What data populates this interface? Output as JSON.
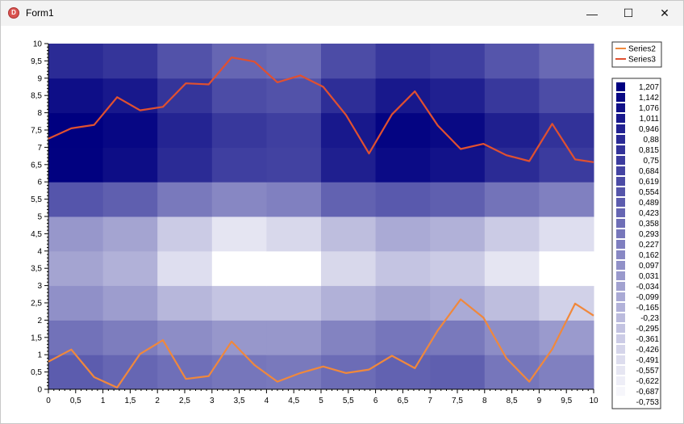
{
  "window": {
    "title": "Form1",
    "icon": "app-icon"
  },
  "titlebar_buttons": [
    {
      "name": "minimize-button",
      "glyph": "—"
    },
    {
      "name": "maximize-button",
      "glyph": "☐"
    },
    {
      "name": "close-button",
      "glyph": "✕"
    }
  ],
  "chart_data": {
    "type": "heatmap",
    "title": "",
    "xlabel": "",
    "ylabel": "",
    "xlim": [
      0,
      10
    ],
    "ylim": [
      0,
      10
    ],
    "x_ticks": [
      "0",
      "0,5",
      "1",
      "1,5",
      "2",
      "2,5",
      "3",
      "3,5",
      "4",
      "4,5",
      "5",
      "5,5",
      "6",
      "6,5",
      "7",
      "7,5",
      "8",
      "8,5",
      "9",
      "9,5",
      "10"
    ],
    "y_ticks": [
      "0",
      "0,5",
      "1",
      "1,5",
      "2",
      "2,5",
      "3",
      "3,5",
      "4",
      "4,5",
      "5",
      "5,5",
      "6",
      "6,5",
      "7",
      "7,5",
      "8",
      "8,5",
      "9",
      "9,5",
      "10"
    ],
    "heatmap_rows": [
      [
        0.5,
        0.42,
        0.35,
        0.3,
        0.28,
        0.38,
        0.45,
        0.48,
        0.3,
        0.22
      ],
      [
        0.33,
        0.25,
        0.12,
        0.05,
        0.05,
        0.2,
        0.3,
        0.28,
        0.12,
        0.02
      ],
      [
        0.1,
        0.0,
        -0.2,
        -0.3,
        -0.3,
        -0.15,
        -0.05,
        -0.1,
        -0.25,
        -0.4
      ],
      [
        -0.05,
        -0.15,
        -0.5,
        -0.75,
        -0.75,
        -0.45,
        -0.3,
        -0.35,
        -0.55,
        -0.75
      ],
      [
        0.05,
        -0.05,
        -0.35,
        -0.55,
        -0.45,
        -0.25,
        -0.1,
        -0.15,
        -0.35,
        -0.5
      ],
      [
        0.55,
        0.48,
        0.28,
        0.17,
        0.22,
        0.45,
        0.52,
        0.48,
        0.32,
        0.22
      ],
      [
        1.2,
        1.11,
        0.88,
        0.72,
        0.7,
        0.97,
        1.12,
        1.07,
        0.88,
        0.75
      ],
      [
        1.207,
        1.15,
        0.93,
        0.78,
        0.72,
        1.02,
        1.18,
        1.14,
        0.97,
        0.82
      ],
      [
        1.1,
        1.02,
        0.8,
        0.62,
        0.58,
        0.85,
        1.02,
        0.96,
        0.78,
        0.62
      ],
      [
        0.88,
        0.8,
        0.58,
        0.42,
        0.38,
        0.62,
        0.78,
        0.72,
        0.55,
        0.4
      ]
    ],
    "series": [
      {
        "name": "Series2",
        "color": "#f0883c",
        "x": [
          0,
          0.42,
          0.84,
          1.26,
          1.68,
          2.1,
          2.52,
          2.94,
          3.36,
          3.78,
          4.2,
          4.62,
          5.04,
          5.46,
          5.88,
          6.3,
          6.72,
          7.14,
          7.56,
          7.98,
          8.4,
          8.82,
          9.24,
          9.66,
          10.0
        ],
        "y": [
          0.8,
          1.15,
          0.35,
          0.05,
          1.02,
          1.42,
          0.3,
          0.38,
          1.38,
          0.7,
          0.22,
          0.47,
          0.66,
          0.47,
          0.57,
          0.97,
          0.61,
          1.7,
          2.6,
          2.07,
          0.9,
          0.22,
          1.16,
          2.48,
          2.13
        ]
      },
      {
        "name": "Series3",
        "color": "#e05030",
        "x": [
          0,
          0.42,
          0.84,
          1.26,
          1.68,
          2.1,
          2.52,
          2.94,
          3.36,
          3.78,
          4.2,
          4.62,
          5.04,
          5.46,
          5.88,
          6.3,
          6.72,
          7.14,
          7.56,
          7.98,
          8.4,
          8.82,
          9.24,
          9.66,
          10.0
        ],
        "y": [
          7.25,
          7.55,
          7.65,
          8.45,
          8.07,
          8.17,
          8.85,
          8.82,
          9.6,
          9.48,
          8.88,
          9.08,
          8.75,
          7.93,
          6.82,
          7.95,
          8.62,
          7.63,
          6.95,
          7.1,
          6.77,
          6.6,
          7.68,
          6.65,
          6.57
        ]
      }
    ],
    "series_legend": [
      "Series2",
      "Series3"
    ],
    "color_scale": {
      "min": -0.753,
      "max": 1.207,
      "min_color": "#ffffff",
      "max_color": "#000080",
      "labels": [
        "1,207",
        "1,142",
        "1,076",
        "1,011",
        "0,946",
        "0,88",
        "0,815",
        "0,75",
        "0,684",
        "0,619",
        "0,554",
        "0,489",
        "0,423",
        "0,358",
        "0,293",
        "0,227",
        "0,162",
        "0,097",
        "0,031",
        "-0,034",
        "-0,099",
        "-0,165",
        "-0,23",
        "-0,295",
        "-0,361",
        "-0,426",
        "-0,491",
        "-0,557",
        "-0,622",
        "-0,687",
        "-0,753"
      ]
    }
  }
}
